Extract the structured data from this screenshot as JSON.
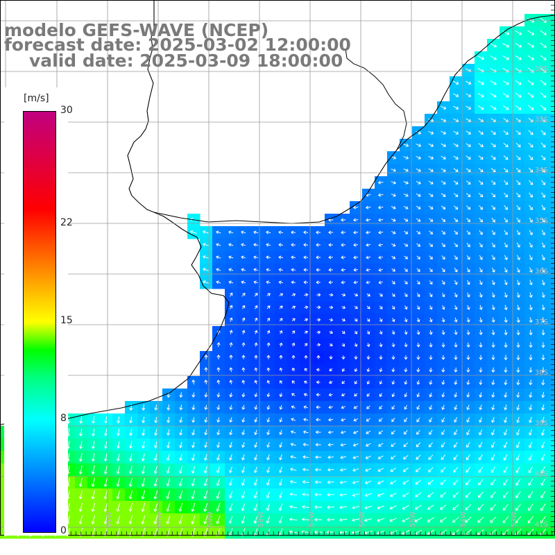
{
  "title": {
    "line1": "modelo GEFS-WAVE (NCEP)",
    "line2": "forecast date: 2025-03-02 12:00:00",
    "line3": "valid date: 2025-03-09 18:00:00"
  },
  "colorbar": {
    "unit": "[m/s]",
    "min": 0,
    "max": 30,
    "ticks": [
      "30",
      "22",
      "15",
      "8",
      "0"
    ],
    "tick_values": [
      30,
      22,
      15,
      8,
      0
    ],
    "stops": [
      {
        "value": 0,
        "color": "#0000ff"
      },
      {
        "value": 4,
        "color": "#0080ff"
      },
      {
        "value": 8,
        "color": "#00ffff"
      },
      {
        "value": 11,
        "color": "#00ff80"
      },
      {
        "value": 13,
        "color": "#00ff00"
      },
      {
        "value": 15,
        "color": "#ffff00"
      },
      {
        "value": 19,
        "color": "#ff8000"
      },
      {
        "value": 23,
        "color": "#ff0000"
      },
      {
        "value": 30,
        "color": "#c00080"
      }
    ]
  },
  "grid": {
    "lat_labels": [
      "32S",
      "33S",
      "34S",
      "35S",
      "36S",
      "37S",
      "38S",
      "39S",
      "40S",
      "41S"
    ],
    "lon_labels": [
      "63W",
      "62W",
      "61W",
      "60W",
      "59W",
      "58W",
      "57W",
      "56W",
      "55W",
      "54W",
      "53W"
    ]
  },
  "colors": {
    "land": "#ffffff",
    "coastline": "#000000",
    "grid_line": "#9a9a9a",
    "arrow": "#ffffff",
    "title_text": "#7a7a7a"
  }
}
